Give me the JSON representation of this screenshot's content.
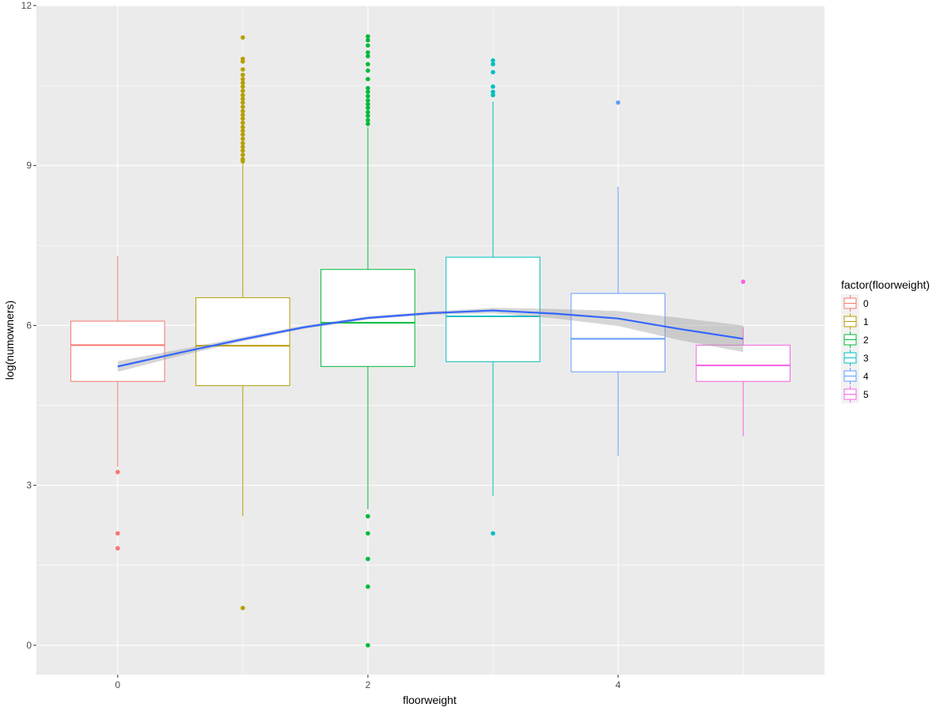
{
  "chart_data": {
    "type": "box",
    "xlabel": "floorweight",
    "ylabel": "log(numowners)",
    "xlim": [
      -0.65,
      5.65
    ],
    "ylim": [
      -0.55,
      12
    ],
    "x_ticks": [
      0,
      2,
      4
    ],
    "y_ticks": [
      0,
      3,
      6,
      9,
      12
    ],
    "grid": true,
    "legend": {
      "title": "factor(floorweight)",
      "position": "right",
      "items": [
        "0",
        "1",
        "2",
        "3",
        "4",
        "5"
      ]
    },
    "series": [
      {
        "name": "0",
        "x": 0,
        "color": "#F8766D",
        "lower_whisker": 3.35,
        "q1": 4.95,
        "median": 5.63,
        "q3": 6.08,
        "upper_whisker": 7.3,
        "outliers": [
          3.25,
          2.1,
          1.82
        ]
      },
      {
        "name": "1",
        "x": 1,
        "color": "#B79F00",
        "lower_whisker": 2.42,
        "q1": 4.87,
        "median": 5.62,
        "q3": 6.52,
        "upper_whisker": 9.05,
        "outliers": [
          11.4,
          11.0,
          10.95,
          10.8,
          10.7,
          10.62,
          10.55,
          10.48,
          10.4,
          10.32,
          10.25,
          10.18,
          10.1,
          10.02,
          9.95,
          9.88,
          9.8,
          9.72,
          9.65,
          9.58,
          9.5,
          9.42,
          9.35,
          9.28,
          9.2,
          9.12,
          9.08,
          0.7
        ]
      },
      {
        "name": "2",
        "x": 2,
        "color": "#00BA38",
        "lower_whisker": 2.55,
        "q1": 5.23,
        "median": 6.05,
        "q3": 7.05,
        "upper_whisker": 9.72,
        "outliers": [
          11.42,
          11.35,
          11.25,
          11.12,
          11.05,
          10.9,
          10.78,
          10.62,
          10.45,
          10.38,
          10.3,
          10.22,
          10.15,
          10.08,
          10.0,
          9.93,
          9.85,
          9.78,
          2.42,
          2.1,
          1.62,
          1.1,
          0.0
        ]
      },
      {
        "name": "3",
        "x": 3,
        "color": "#00BFC4",
        "lower_whisker": 2.8,
        "q1": 5.32,
        "median": 6.17,
        "q3": 7.28,
        "upper_whisker": 10.2,
        "outliers": [
          10.97,
          10.9,
          10.75,
          10.48,
          10.38,
          10.32,
          2.1
        ]
      },
      {
        "name": "4",
        "x": 4,
        "color": "#619CFF",
        "lower_whisker": 3.55,
        "q1": 5.13,
        "median": 5.75,
        "q3": 6.6,
        "upper_whisker": 8.6,
        "outliers": [
          10.18
        ]
      },
      {
        "name": "5",
        "x": 5,
        "color": "#F564E3",
        "lower_whisker": 3.92,
        "q1": 4.95,
        "median": 5.25,
        "q3": 5.63,
        "upper_whisker": 5.97,
        "outliers": [
          6.82
        ]
      }
    ],
    "smooth": {
      "color": "#3366FF",
      "band_color": "#999999",
      "points": [
        {
          "x": 0.0,
          "y": 5.23,
          "lo": 5.13,
          "hi": 5.33
        },
        {
          "x": 0.5,
          "y": 5.49,
          "lo": 5.43,
          "hi": 5.55
        },
        {
          "x": 1.0,
          "y": 5.74,
          "lo": 5.7,
          "hi": 5.78
        },
        {
          "x": 1.5,
          "y": 5.97,
          "lo": 5.94,
          "hi": 6.0
        },
        {
          "x": 2.0,
          "y": 6.14,
          "lo": 6.11,
          "hi": 6.17
        },
        {
          "x": 2.5,
          "y": 6.23,
          "lo": 6.2,
          "hi": 6.26
        },
        {
          "x": 3.0,
          "y": 6.28,
          "lo": 6.23,
          "hi": 6.33
        },
        {
          "x": 3.5,
          "y": 6.22,
          "lo": 6.13,
          "hi": 6.31
        },
        {
          "x": 4.0,
          "y": 6.13,
          "lo": 5.99,
          "hi": 6.27
        },
        {
          "x": 4.5,
          "y": 5.93,
          "lo": 5.72,
          "hi": 6.14
        },
        {
          "x": 5.0,
          "y": 5.75,
          "lo": 5.5,
          "hi": 6.0
        }
      ]
    }
  }
}
